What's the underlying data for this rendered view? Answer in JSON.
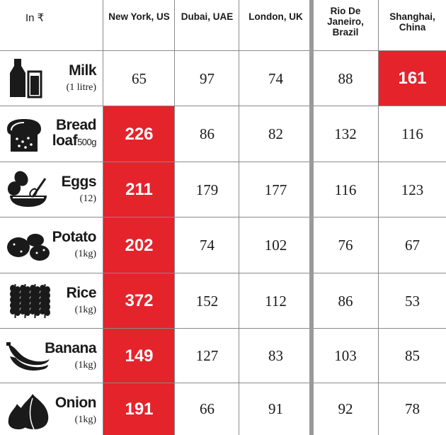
{
  "chart_data": {
    "type": "table",
    "unit_label": "In ₹",
    "columns": [
      {
        "label": "New York, US"
      },
      {
        "label": "Dubai, UAE"
      },
      {
        "label": "London, UK"
      },
      {
        "label": "Rio De Janeiro, Brazil"
      },
      {
        "label": "Shanghai, China"
      }
    ],
    "rows": [
      {
        "name": "Milk",
        "qty": "(1 litre)",
        "icon": "milk-bottle-icon",
        "values": [
          65,
          97,
          74,
          88,
          161
        ],
        "highlight": [
          false,
          false,
          false,
          false,
          true
        ]
      },
      {
        "name": "Bread loaf",
        "name_line1": "Bread",
        "name_line2": "loaf",
        "qty": "500g",
        "icon": "bread-icon",
        "values": [
          226,
          86,
          82,
          132,
          116
        ],
        "highlight": [
          true,
          false,
          false,
          false,
          false
        ]
      },
      {
        "name": "Eggs",
        "qty": "(12)",
        "icon": "eggs-bowl-icon",
        "values": [
          211,
          179,
          177,
          116,
          123
        ],
        "highlight": [
          true,
          false,
          false,
          false,
          false
        ]
      },
      {
        "name": "Potato",
        "qty": "(1kg)",
        "icon": "potato-icon",
        "values": [
          202,
          74,
          102,
          76,
          67
        ],
        "highlight": [
          true,
          false,
          false,
          false,
          false
        ]
      },
      {
        "name": "Rice",
        "qty": "(1kg)",
        "icon": "rice-icon",
        "values": [
          372,
          152,
          112,
          86,
          53
        ],
        "highlight": [
          true,
          false,
          false,
          false,
          false
        ]
      },
      {
        "name": "Banana",
        "qty": "(1kg)",
        "icon": "banana-icon",
        "values": [
          149,
          127,
          83,
          103,
          85
        ],
        "highlight": [
          true,
          false,
          false,
          false,
          false
        ]
      },
      {
        "name": "Onion",
        "qty": "(1kg)",
        "icon": "onion-icon",
        "values": [
          191,
          66,
          91,
          92,
          78
        ],
        "highlight": [
          true,
          false,
          false,
          false,
          false
        ]
      }
    ],
    "colors": {
      "highlight": "#e4232b",
      "grid": "#8a8a8a",
      "text": "#1a1a1a"
    }
  }
}
